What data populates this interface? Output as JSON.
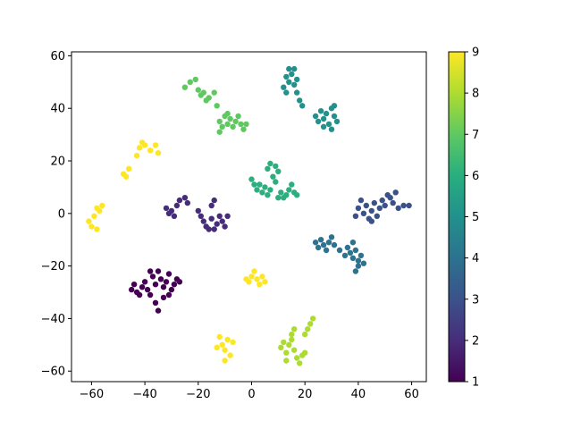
{
  "chart_data": {
    "type": "scatter",
    "title": "",
    "xlabel": "",
    "ylabel": "",
    "xlim": [
      -67.5,
      65.5
    ],
    "ylim": [
      -64,
      61.5
    ],
    "xticks": [
      -60,
      -40,
      -20,
      0,
      20,
      40,
      60
    ],
    "yticks": [
      -60,
      -40,
      -20,
      0,
      20,
      40,
      60
    ],
    "grid": false,
    "colormap": "viridis",
    "colorbar": {
      "min": 1,
      "max": 9,
      "ticks": [
        1,
        2,
        3,
        4,
        5,
        6,
        7,
        8,
        9
      ]
    },
    "clusters": [
      {
        "label": 1,
        "points": [
          [
            -45,
            -29
          ],
          [
            -44,
            -27
          ],
          [
            -43,
            -30
          ],
          [
            -41,
            -28
          ],
          [
            -40,
            -26
          ],
          [
            -39,
            -29
          ],
          [
            -38,
            -31
          ],
          [
            -37,
            -24
          ],
          [
            -36,
            -27
          ],
          [
            -35,
            -22
          ],
          [
            -34,
            -25
          ],
          [
            -33,
            -28
          ],
          [
            -33,
            -32
          ],
          [
            -32,
            -26
          ],
          [
            -31,
            -23
          ],
          [
            -30,
            -29
          ],
          [
            -29,
            -27
          ],
          [
            -28,
            -25
          ],
          [
            -36,
            -34
          ],
          [
            -35,
            -37
          ],
          [
            -42,
            -31
          ],
          [
            -38,
            -22
          ],
          [
            -31,
            -31
          ],
          [
            -27,
            -26
          ]
        ]
      },
      {
        "label": 2,
        "points": [
          [
            -32,
            2
          ],
          [
            -31,
            0
          ],
          [
            -30,
            1
          ],
          [
            -28,
            3
          ],
          [
            -27,
            5
          ],
          [
            -25,
            6
          ],
          [
            -24,
            4
          ],
          [
            -20,
            1
          ],
          [
            -19,
            -1
          ],
          [
            -18,
            -3
          ],
          [
            -17,
            -5
          ],
          [
            -15,
            -2
          ],
          [
            -14,
            -6
          ],
          [
            -13,
            -4
          ],
          [
            -12,
            -1
          ],
          [
            -11,
            -3
          ],
          [
            -10,
            -5
          ],
          [
            -9,
            -1
          ],
          [
            -15,
            3
          ],
          [
            -14,
            5
          ],
          [
            -29,
            -1
          ],
          [
            -16,
            -6
          ]
        ]
      },
      {
        "label": 3,
        "points": [
          [
            39,
            -1
          ],
          [
            40,
            2
          ],
          [
            41,
            5
          ],
          [
            42,
            0
          ],
          [
            43,
            3
          ],
          [
            44,
            -2
          ],
          [
            45,
            1
          ],
          [
            46,
            4
          ],
          [
            47,
            -1
          ],
          [
            48,
            2
          ],
          [
            49,
            5
          ],
          [
            50,
            3
          ],
          [
            51,
            7
          ],
          [
            52,
            6
          ],
          [
            53,
            4
          ],
          [
            55,
            2
          ],
          [
            57,
            3
          ],
          [
            59,
            3
          ],
          [
            45,
            -3
          ],
          [
            54,
            8
          ]
        ]
      },
      {
        "label": 4,
        "points": [
          [
            24,
            -11
          ],
          [
            25,
            -13
          ],
          [
            26,
            -10
          ],
          [
            27,
            -12
          ],
          [
            28,
            -14
          ],
          [
            29,
            -11
          ],
          [
            30,
            -9
          ],
          [
            31,
            -12
          ],
          [
            33,
            -14
          ],
          [
            35,
            -16
          ],
          [
            36,
            -13
          ],
          [
            37,
            -15
          ],
          [
            38,
            -17
          ],
          [
            39,
            -14
          ],
          [
            40,
            -18
          ],
          [
            41,
            -16
          ],
          [
            42,
            -19
          ],
          [
            39,
            -22
          ],
          [
            38,
            -11
          ],
          [
            40,
            -20
          ]
        ]
      },
      {
        "label": 5,
        "points": [
          [
            13,
            52
          ],
          [
            14,
            50
          ],
          [
            15,
            53
          ],
          [
            16,
            49
          ],
          [
            17,
            51
          ],
          [
            12,
            48
          ],
          [
            13,
            46
          ],
          [
            17,
            46
          ],
          [
            18,
            43
          ],
          [
            19,
            41
          ],
          [
            14,
            55
          ],
          [
            16,
            55
          ],
          [
            24,
            37
          ],
          [
            25,
            35
          ],
          [
            26,
            39
          ],
          [
            27,
            36
          ],
          [
            28,
            38
          ],
          [
            29,
            34
          ],
          [
            30,
            40
          ],
          [
            31,
            37
          ],
          [
            32,
            35
          ],
          [
            30,
            32
          ],
          [
            27,
            33
          ],
          [
            31,
            41
          ]
        ]
      },
      {
        "label": 6,
        "points": [
          [
            0,
            13
          ],
          [
            1,
            11
          ],
          [
            2,
            9
          ],
          [
            3,
            11
          ],
          [
            4,
            8
          ],
          [
            5,
            10
          ],
          [
            6,
            7
          ],
          [
            7,
            9
          ],
          [
            8,
            14
          ],
          [
            9,
            12
          ],
          [
            10,
            16
          ],
          [
            11,
            8
          ],
          [
            12,
            6
          ],
          [
            13,
            7
          ],
          [
            14,
            9
          ],
          [
            15,
            11
          ],
          [
            16,
            8
          ],
          [
            17,
            7
          ],
          [
            6,
            17
          ],
          [
            7,
            19
          ],
          [
            9,
            18
          ],
          [
            10,
            6
          ]
        ]
      },
      {
        "label": 7,
        "points": [
          [
            -25,
            48
          ],
          [
            -23,
            50
          ],
          [
            -21,
            51
          ],
          [
            -20,
            47
          ],
          [
            -19,
            45
          ],
          [
            -18,
            46
          ],
          [
            -17,
            43
          ],
          [
            -16,
            44
          ],
          [
            -14,
            46
          ],
          [
            -13,
            41
          ],
          [
            -12,
            35
          ],
          [
            -11,
            33
          ],
          [
            -10,
            37
          ],
          [
            -9,
            34
          ],
          [
            -8,
            36
          ],
          [
            -7,
            33
          ],
          [
            -6,
            35
          ],
          [
            -5,
            37
          ],
          [
            -4,
            34
          ],
          [
            -3,
            32
          ],
          [
            -2,
            34
          ],
          [
            -9,
            38
          ],
          [
            -12,
            31
          ]
        ]
      },
      {
        "label": 8,
        "points": [
          [
            11,
            -51
          ],
          [
            12,
            -49
          ],
          [
            13,
            -53
          ],
          [
            14,
            -50
          ],
          [
            15,
            -48
          ],
          [
            16,
            -52
          ],
          [
            17,
            -55
          ],
          [
            18,
            -57
          ],
          [
            19,
            -54
          ],
          [
            20,
            -46
          ],
          [
            21,
            -44
          ],
          [
            22,
            -42
          ],
          [
            23,
            -40
          ],
          [
            15,
            -46
          ],
          [
            16,
            -44
          ],
          [
            20,
            -53
          ],
          [
            13,
            -56
          ]
        ]
      },
      {
        "label": 9,
        "points": [
          [
            -61,
            -3
          ],
          [
            -60,
            -5
          ],
          [
            -59,
            -1
          ],
          [
            -58,
            2
          ],
          [
            -57,
            1
          ],
          [
            -56,
            3
          ],
          [
            -58,
            -6
          ],
          [
            -48,
            15
          ],
          [
            -47,
            14
          ],
          [
            -46,
            17
          ],
          [
            -43,
            22
          ],
          [
            -42,
            25
          ],
          [
            -41,
            27
          ],
          [
            -40,
            26
          ],
          [
            -38,
            24
          ],
          [
            -35,
            23
          ],
          [
            -36,
            26
          ],
          [
            -1,
            -26
          ],
          [
            0,
            -24
          ],
          [
            1,
            -22
          ],
          [
            2,
            -25
          ],
          [
            3,
            -27
          ],
          [
            4,
            -24
          ],
          [
            5,
            -26
          ],
          [
            -2,
            -25
          ],
          [
            -12,
            -47
          ],
          [
            -11,
            -50
          ],
          [
            -10,
            -52
          ],
          [
            -9,
            -48
          ],
          [
            -8,
            -54
          ],
          [
            -7,
            -49
          ],
          [
            -10,
            -56
          ],
          [
            -13,
            -51
          ]
        ]
      }
    ]
  }
}
